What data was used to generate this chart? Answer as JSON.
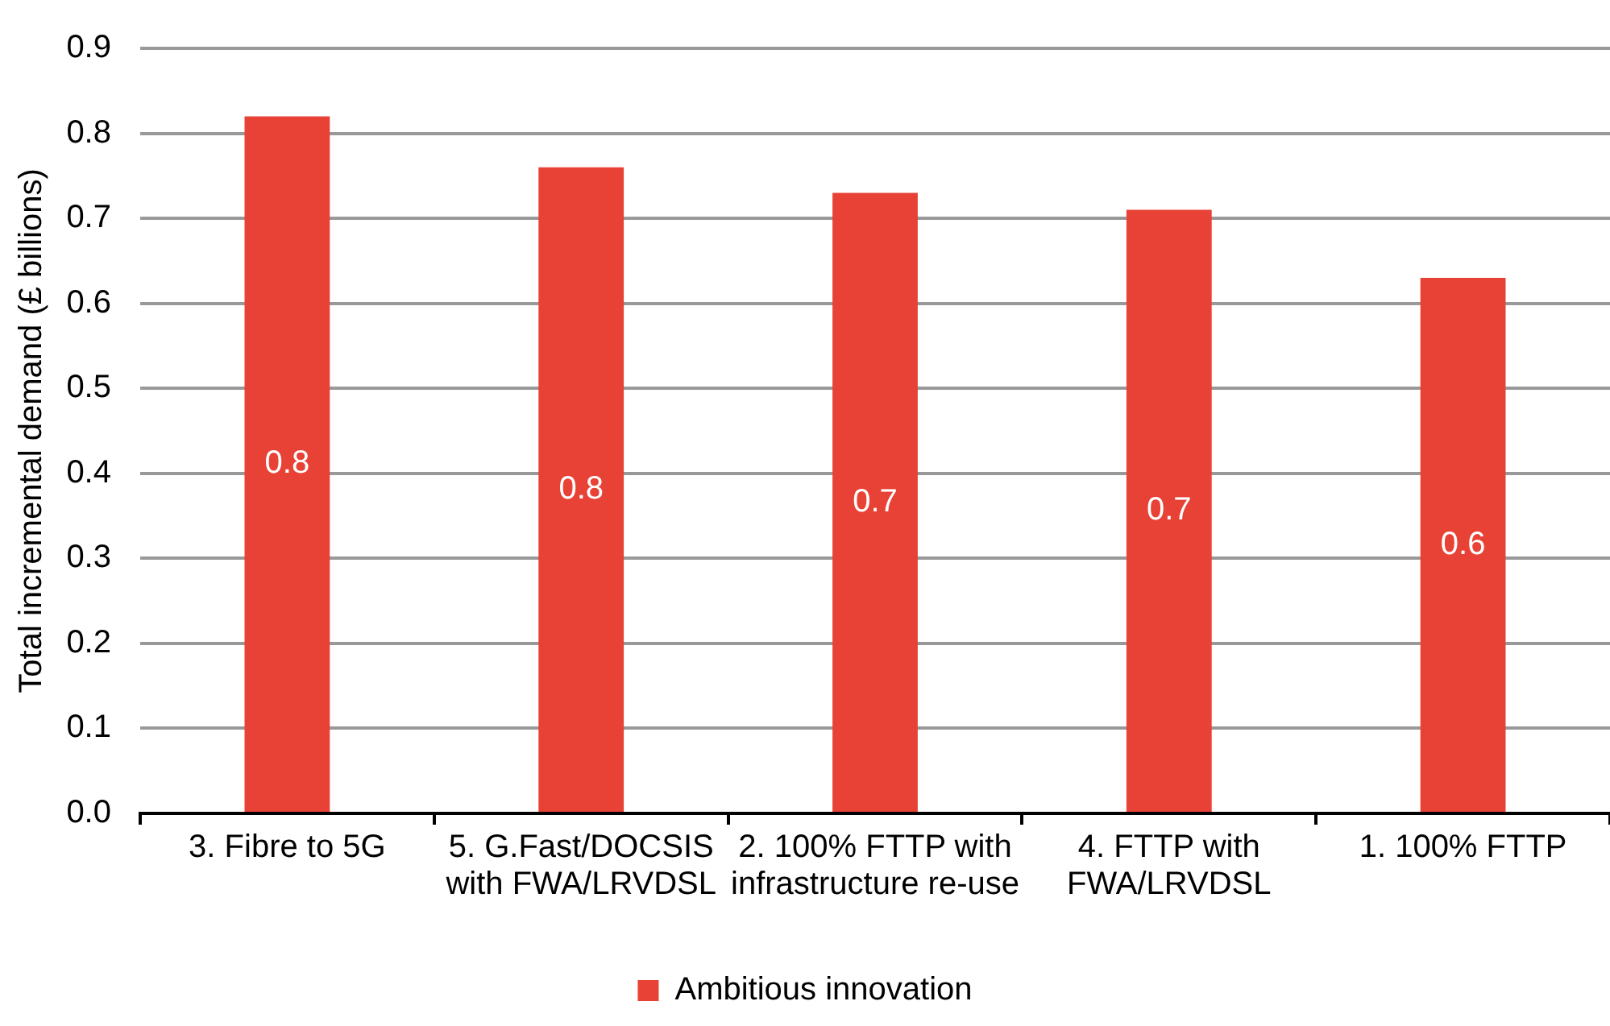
{
  "chart_data": {
    "type": "bar",
    "ylabel": "Total incremental demand (£ billions)",
    "categories": [
      "3. Fibre to 5G",
      "5. G.Fast/DOCSIS with FWA/LRVDSL",
      "2. 100% FTTP with infrastructure re-use",
      "4. FTTP with FWA/LRVDSL",
      "1. 100% FTTP"
    ],
    "series": [
      {
        "name": "Ambitious innovation",
        "color": "#e84135",
        "values": [
          0.82,
          0.76,
          0.73,
          0.71,
          0.63
        ],
        "value_labels": [
          "0.8",
          "0.8",
          "0.7",
          "0.7",
          "0.6"
        ]
      }
    ],
    "ylim": [
      0,
      0.9
    ],
    "yticks": [
      {
        "value": 0,
        "label": "0.0"
      },
      0.1,
      0.2,
      0.3,
      0.4,
      0.5,
      0.6,
      0.7,
      0.8,
      0.9
    ],
    "grid": "y",
    "legend": "bottom"
  }
}
